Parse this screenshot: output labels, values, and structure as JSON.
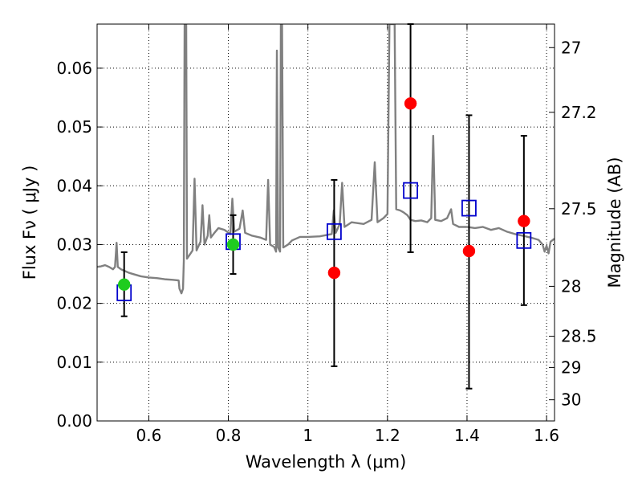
{
  "chart_data": {
    "type": "scatter",
    "xlabel": "Wavelength  λ (μm)",
    "ylabel": "Flux  Fν  ( μJy )",
    "ylabel_right": "Magnitude (AB)",
    "xlim": [
      0.47,
      1.62
    ],
    "ylim": [
      0.0,
      0.0675
    ],
    "grid": true,
    "x_ticks": [
      {
        "value": 0.6,
        "label": "0.6"
      },
      {
        "value": 0.8,
        "label": "0.8"
      },
      {
        "value": 1.0,
        "label": "1"
      },
      {
        "value": 1.2,
        "label": "1.2"
      },
      {
        "value": 1.4,
        "label": "1.4"
      },
      {
        "value": 1.6,
        "label": "1.6"
      }
    ],
    "y_ticks": [
      {
        "value": 0.0,
        "label": "0.00"
      },
      {
        "value": 0.01,
        "label": "0.01"
      },
      {
        "value": 0.02,
        "label": "0.02"
      },
      {
        "value": 0.03,
        "label": "0.03"
      },
      {
        "value": 0.04,
        "label": "0.04"
      },
      {
        "value": 0.05,
        "label": "0.05"
      },
      {
        "value": 0.06,
        "label": "0.06"
      }
    ],
    "right_ticks": [
      {
        "flux": 0.0635,
        "label": "27"
      },
      {
        "flux": 0.0525,
        "label": "27.2"
      },
      {
        "flux": 0.0361,
        "label": "27.5"
      },
      {
        "flux": 0.0229,
        "label": "28"
      },
      {
        "flux": 0.0144,
        "label": "28.5"
      },
      {
        "flux": 0.0091,
        "label": "29"
      },
      {
        "flux": 0.0036,
        "label": "30"
      }
    ],
    "model_spectrum": {
      "color": "#808080",
      "points": [
        [
          0.47,
          0.0262
        ],
        [
          0.48,
          0.0263
        ],
        [
          0.49,
          0.0265
        ],
        [
          0.5,
          0.0262
        ],
        [
          0.51,
          0.0258
        ],
        [
          0.515,
          0.0262
        ],
        [
          0.519,
          0.0303
        ],
        [
          0.522,
          0.0262
        ],
        [
          0.53,
          0.0258
        ],
        [
          0.54,
          0.0255
        ],
        [
          0.55,
          0.0252
        ],
        [
          0.56,
          0.025
        ],
        [
          0.58,
          0.0246
        ],
        [
          0.6,
          0.0244
        ],
        [
          0.62,
          0.0243
        ],
        [
          0.64,
          0.0241
        ],
        [
          0.66,
          0.024
        ],
        [
          0.675,
          0.0239
        ],
        [
          0.677,
          0.0225
        ],
        [
          0.682,
          0.0217
        ],
        [
          0.686,
          0.0225
        ],
        [
          0.688,
          0.0272
        ],
        [
          0.69,
          0.0675
        ],
        [
          0.694,
          0.0675
        ],
        [
          0.696,
          0.0276
        ],
        [
          0.703,
          0.0283
        ],
        [
          0.71,
          0.029
        ],
        [
          0.715,
          0.0412
        ],
        [
          0.72,
          0.029
        ],
        [
          0.73,
          0.0305
        ],
        [
          0.735,
          0.0367
        ],
        [
          0.74,
          0.03
        ],
        [
          0.748,
          0.0315
        ],
        [
          0.752,
          0.035
        ],
        [
          0.756,
          0.0312
        ],
        [
          0.765,
          0.032
        ],
        [
          0.775,
          0.0328
        ],
        [
          0.79,
          0.0325
        ],
        [
          0.805,
          0.0318
        ],
        [
          0.81,
          0.0378
        ],
        [
          0.815,
          0.0322
        ],
        [
          0.828,
          0.0327
        ],
        [
          0.836,
          0.0358
        ],
        [
          0.842,
          0.032
        ],
        [
          0.86,
          0.0315
        ],
        [
          0.88,
          0.0312
        ],
        [
          0.895,
          0.0308
        ],
        [
          0.9,
          0.041
        ],
        [
          0.905,
          0.03
        ],
        [
          0.915,
          0.0296
        ],
        [
          0.92,
          0.0288
        ],
        [
          0.922,
          0.063
        ],
        [
          0.925,
          0.0295
        ],
        [
          0.93,
          0.0288
        ],
        [
          0.932,
          0.0675
        ],
        [
          0.935,
          0.0675
        ],
        [
          0.938,
          0.0295
        ],
        [
          0.95,
          0.03
        ],
        [
          0.96,
          0.0307
        ],
        [
          0.98,
          0.0313
        ],
        [
          1.0,
          0.0313
        ],
        [
          1.03,
          0.0314
        ],
        [
          1.06,
          0.0318
        ],
        [
          1.065,
          0.0358
        ],
        [
          1.07,
          0.032
        ],
        [
          1.08,
          0.0335
        ],
        [
          1.086,
          0.0405
        ],
        [
          1.092,
          0.033
        ],
        [
          1.11,
          0.0338
        ],
        [
          1.14,
          0.0335
        ],
        [
          1.16,
          0.0342
        ],
        [
          1.168,
          0.044
        ],
        [
          1.175,
          0.0338
        ],
        [
          1.19,
          0.0345
        ],
        [
          1.2,
          0.0352
        ],
        [
          1.205,
          0.0675
        ],
        [
          1.218,
          0.0675
        ],
        [
          1.222,
          0.036
        ],
        [
          1.232,
          0.0358
        ],
        [
          1.24,
          0.0355
        ],
        [
          1.25,
          0.035
        ],
        [
          1.258,
          0.0342
        ],
        [
          1.27,
          0.034
        ],
        [
          1.285,
          0.0341
        ],
        [
          1.3,
          0.0338
        ],
        [
          1.31,
          0.0345
        ],
        [
          1.315,
          0.0485
        ],
        [
          1.32,
          0.0342
        ],
        [
          1.335,
          0.034
        ],
        [
          1.35,
          0.0345
        ],
        [
          1.36,
          0.036
        ],
        [
          1.365,
          0.0335
        ],
        [
          1.38,
          0.033
        ],
        [
          1.4,
          0.033
        ],
        [
          1.42,
          0.0328
        ],
        [
          1.44,
          0.033
        ],
        [
          1.46,
          0.0325
        ],
        [
          1.48,
          0.0328
        ],
        [
          1.5,
          0.0322
        ],
        [
          1.52,
          0.0318
        ],
        [
          1.54,
          0.0315
        ],
        [
          1.56,
          0.0312
        ],
        [
          1.58,
          0.0308
        ],
        [
          1.59,
          0.03
        ],
        [
          1.595,
          0.0288
        ],
        [
          1.6,
          0.0298
        ],
        [
          1.605,
          0.0285
        ],
        [
          1.61,
          0.0305
        ],
        [
          1.62,
          0.031
        ]
      ]
    },
    "model_points": [
      {
        "x": 0.538,
        "y": 0.0218
      },
      {
        "x": 0.812,
        "y": 0.0305
      },
      {
        "x": 1.066,
        "y": 0.0322
      },
      {
        "x": 1.258,
        "y": 0.0392
      },
      {
        "x": 1.405,
        "y": 0.0362
      },
      {
        "x": 1.543,
        "y": 0.0307
      }
    ],
    "observed_points": [
      {
        "x": 0.538,
        "y": 0.0232,
        "err_low": 0.0178,
        "err_high": 0.0287,
        "color": "#1fcc1f"
      },
      {
        "x": 0.812,
        "y": 0.03,
        "err_low": 0.025,
        "err_high": 0.035,
        "color": "#1fcc1f"
      },
      {
        "x": 1.066,
        "y": 0.0252,
        "err_low": 0.0093,
        "err_high": 0.041,
        "color": "#ff0000"
      },
      {
        "x": 1.258,
        "y": 0.054,
        "err_low": 0.0287,
        "err_high": 0.0675,
        "color": "#ff0000"
      },
      {
        "x": 1.405,
        "y": 0.0289,
        "err_low": 0.0055,
        "err_high": 0.052,
        "color": "#ff0000"
      },
      {
        "x": 1.543,
        "y": 0.034,
        "err_low": 0.0197,
        "err_high": 0.0485,
        "color": "#ff0000"
      }
    ],
    "colors": {
      "model_marker": "#0000cc",
      "errorbar": "#000000",
      "grid": "#000000"
    }
  }
}
